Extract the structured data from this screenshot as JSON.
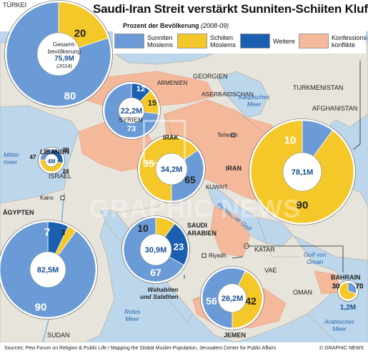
{
  "header": {
    "title": "Saudi-Iran Streit verstärkt Sunniten-Schiiten Kluft",
    "subtitle": "Prozent der Bevölkerung",
    "years": "(2008-09)"
  },
  "legend": [
    {
      "label": "Sunniten\nMoslems",
      "color": "#6b9bd6"
    },
    {
      "label": "Schiiten\nMoslems",
      "color": "#f5c829"
    },
    {
      "label": "Weitere",
      "color": "#1a5fb0"
    },
    {
      "label": "Konfessions-\nkonflikte",
      "color": "#f4b99b"
    }
  ],
  "colors": {
    "sunni": "#6b9bd6",
    "shia": "#f5c829",
    "other": "#1a5fb0",
    "conflict": "#f4b99b",
    "sea": "#bcd6ec",
    "land": "#e7e4dc"
  },
  "map_labels": {
    "tuerkei": "TÜRKEI",
    "georgien": "GEORGIEN",
    "armenien": "ARMENIEN",
    "aserbaidschan": "ASERBAIDSCHAN",
    "turkmenistan": "TURKMENISTAN",
    "afghanistan": "AFGHANISTAN",
    "syrien": "SYRIEN",
    "irak": "IRAK",
    "libanon": "LIBANON",
    "israel": "ISRAEL",
    "iran": "IRAN",
    "kuwait": "KUWAIT",
    "aegypten": "ÄGYPTEN",
    "saudi": "SAUDI\nARABIEN",
    "katar": "KATAR",
    "vae": "VAE",
    "oman": "OMAN",
    "bahrain": "BAHRAIN",
    "jemen": "JEMEN",
    "sudan": "SUDAN",
    "kaspisches_meer": "Kaspisches\nMeer",
    "mittelmeer": "Mittel-\nmeer",
    "persischer_golf": "Persischer Golf",
    "golf_von_oman": "Golf von\nOman",
    "arabisches_meer": "Arabisches\nMeer",
    "rotes_meer": "Rotes\nMeer",
    "teheran": "Teheran",
    "kairo": "Kairo",
    "riyadh": "Riyadh",
    "wahabiten": "Wahabiten\nund Salafiten"
  },
  "chart_data": {
    "type": "pie",
    "pies": [
      {
        "country": "Türkei",
        "total": "75,9M",
        "segments": [
          {
            "name": "Sunniten Moslems",
            "value": 80
          },
          {
            "name": "Schiiten Moslems",
            "value": 20
          }
        ],
        "center_lines": [
          "Gesamt-",
          "bevölkerung",
          "75,9M",
          "(2014)"
        ]
      },
      {
        "country": "Syrien",
        "total": "22,2M",
        "segments": [
          {
            "name": "Sunniten Moslems",
            "value": 73
          },
          {
            "name": "Weitere",
            "value": 12
          },
          {
            "name": "Schiiten Moslems",
            "value": 15
          }
        ]
      },
      {
        "country": "Libanon",
        "total": "4M",
        "segments": [
          {
            "name": "Sunniten Moslems",
            "value": 24
          },
          {
            "name": "Weitere",
            "value": 29
          },
          {
            "name": "Schiiten Moslems",
            "value": 47
          }
        ]
      },
      {
        "country": "Irak",
        "total": "34,2M",
        "segments": [
          {
            "name": "Sunniten Moslems",
            "value": 35
          },
          {
            "name": "Schiiten Moslems",
            "value": 65
          }
        ]
      },
      {
        "country": "Iran",
        "total": "78,1M",
        "segments": [
          {
            "name": "Sunniten Moslems",
            "value": 10
          },
          {
            "name": "Schiiten Moslems",
            "value": 90
          }
        ]
      },
      {
        "country": "Ägypten",
        "total": "82,5M",
        "segments": [
          {
            "name": "Sunniten Moslems",
            "value": 90
          },
          {
            "name": "Weitere",
            "value": 7
          },
          {
            "name": "Schiiten Moslems",
            "value": 3
          }
        ]
      },
      {
        "country": "Saudi Arabien",
        "total": "30,9M",
        "segments": [
          {
            "name": "Sunniten Moslems",
            "value": 67
          },
          {
            "name": "Schiiten Moslems",
            "value": 10
          },
          {
            "name": "Weitere",
            "value": 23
          }
        ]
      },
      {
        "country": "Jemen",
        "total": "26,2M",
        "segments": [
          {
            "name": "Sunniten Moslems",
            "value": 56
          },
          {
            "name": "Schiiten Moslems",
            "value": 42
          }
        ]
      },
      {
        "country": "Bahrain",
        "total": "1,2M",
        "segments": [
          {
            "name": "Sunniten Moslems",
            "value": 30
          },
          {
            "name": "Schiiten Moslems",
            "value": 70
          }
        ]
      }
    ]
  },
  "watermark": "GRAPHIC NEWS",
  "footer": {
    "sources": "Sources: Pew Forum on Religion & Public Life / Mapping the Global Muslim Population, Jerusalem Center for Public Affairs",
    "credit": "© GRAPHIC NEWS"
  }
}
